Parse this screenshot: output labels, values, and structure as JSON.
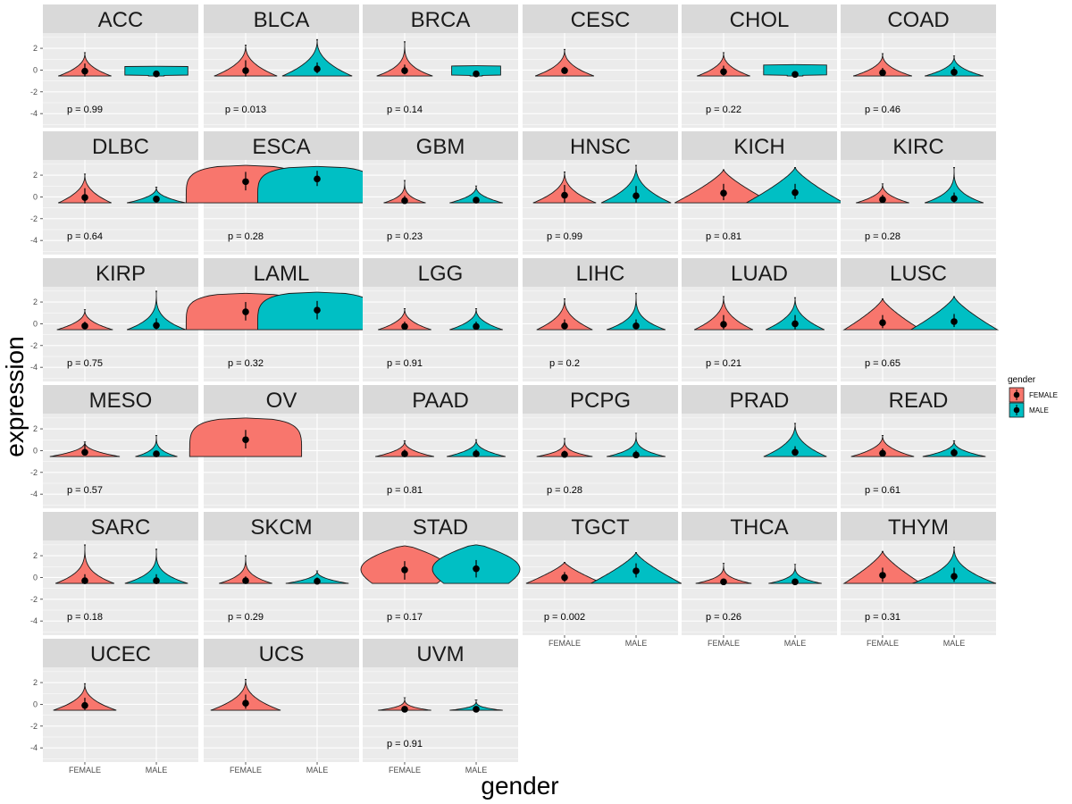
{
  "chart_data": {
    "type": "violin",
    "facet_layout": "6 columns, wrapped",
    "xlabel": "gender",
    "ylabel": "expression",
    "categories": [
      "FEMALE",
      "MALE"
    ],
    "ylim": [
      -5.3,
      3.4
    ],
    "yticks": [
      2,
      0,
      -2,
      -4
    ],
    "colors": {
      "FEMALE": "#F8766D",
      "MALE": "#00BFC4",
      "strip": "#D9D9D9",
      "panel": "#EBEBEB",
      "grid": "#FFFFFF",
      "outline": "#1A1A1A",
      "point": "#000000"
    },
    "legend": {
      "title": "gender",
      "position": "right",
      "entries": [
        "FEMALE",
        "MALE"
      ]
    },
    "facets": [
      {
        "name": "ACC",
        "pvalue": "p = 0.99",
        "violins": [
          {
            "group": "FEMALE",
            "min": -0.55,
            "max": 1.6,
            "width": 0.38,
            "shape": "spike",
            "mean": -0.1,
            "lo": -0.6,
            "hi": 0.6
          },
          {
            "group": "MALE",
            "min": -0.55,
            "max": 0.35,
            "width": 0.45,
            "shape": "funnel",
            "mean": -0.35,
            "lo": -0.5,
            "hi": -0.2
          }
        ]
      },
      {
        "name": "BLCA",
        "pvalue": "p = 0.013",
        "violins": [
          {
            "group": "FEMALE",
            "min": -0.55,
            "max": 2.3,
            "width": 0.45,
            "shape": "spike",
            "mean": -0.05,
            "lo": -0.6,
            "hi": 0.9
          },
          {
            "group": "MALE",
            "min": -0.55,
            "max": 2.8,
            "width": 0.5,
            "shape": "spike",
            "mean": 0.1,
            "lo": -0.3,
            "hi": 0.7
          }
        ]
      },
      {
        "name": "BRCA",
        "pvalue": "p = 0.14",
        "violins": [
          {
            "group": "FEMALE",
            "min": -0.55,
            "max": 2.6,
            "width": 0.4,
            "shape": "thin",
            "mean": -0.05,
            "lo": -0.4,
            "hi": 0.5
          },
          {
            "group": "MALE",
            "min": -0.55,
            "max": 0.4,
            "width": 0.35,
            "shape": "funnel",
            "mean": -0.35,
            "lo": -0.5,
            "hi": -0.2
          }
        ]
      },
      {
        "name": "CESC",
        "pvalue": "",
        "violins": [
          {
            "group": "FEMALE",
            "min": -0.55,
            "max": 1.9,
            "width": 0.42,
            "shape": "spike",
            "mean": -0.05,
            "lo": -0.3,
            "hi": 0.3
          }
        ]
      },
      {
        "name": "CHOL",
        "pvalue": "p = 0.22",
        "violins": [
          {
            "group": "FEMALE",
            "min": -0.55,
            "max": 1.6,
            "width": 0.38,
            "shape": "spike",
            "mean": -0.15,
            "lo": -0.5,
            "hi": 0.4
          },
          {
            "group": "MALE",
            "min": -0.55,
            "max": 0.5,
            "width": 0.45,
            "shape": "funnel",
            "mean": -0.4,
            "lo": -0.5,
            "hi": -0.3
          }
        ]
      },
      {
        "name": "COAD",
        "pvalue": "p = 0.46",
        "violins": [
          {
            "group": "FEMALE",
            "min": -0.55,
            "max": 1.5,
            "width": 0.42,
            "shape": "spike",
            "mean": -0.25,
            "lo": -0.5,
            "hi": 0.2
          },
          {
            "group": "MALE",
            "min": -0.55,
            "max": 1.3,
            "width": 0.42,
            "shape": "spike",
            "mean": -0.2,
            "lo": -0.4,
            "hi": 0.3
          }
        ]
      },
      {
        "name": "DLBC",
        "pvalue": "p = 0.64",
        "violins": [
          {
            "group": "FEMALE",
            "min": -0.55,
            "max": 2.1,
            "width": 0.38,
            "shape": "spike",
            "mean": -0.05,
            "lo": -0.6,
            "hi": 0.8
          },
          {
            "group": "MALE",
            "min": -0.55,
            "max": 0.9,
            "width": 0.42,
            "shape": "spike",
            "mean": -0.2,
            "lo": -0.4,
            "hi": 0.1
          }
        ]
      },
      {
        "name": "ESCA",
        "pvalue": "p = 0.28",
        "violins": [
          {
            "group": "FEMALE",
            "min": -0.55,
            "max": 2.9,
            "width": 0.85,
            "shape": "wide",
            "mean": 1.4,
            "lo": 0.6,
            "hi": 2.3
          },
          {
            "group": "MALE",
            "min": -0.55,
            "max": 2.8,
            "width": 0.85,
            "shape": "wide",
            "mean": 1.65,
            "lo": 1.0,
            "hi": 2.4
          }
        ]
      },
      {
        "name": "GBM",
        "pvalue": "p = 0.23",
        "violins": [
          {
            "group": "FEMALE",
            "min": -0.55,
            "max": 1.5,
            "width": 0.3,
            "shape": "thin",
            "mean": -0.35,
            "lo": -0.6,
            "hi": 0.1
          },
          {
            "group": "MALE",
            "min": -0.55,
            "max": 1.0,
            "width": 0.38,
            "shape": "spike",
            "mean": -0.3,
            "lo": -0.5,
            "hi": 0.0
          }
        ]
      },
      {
        "name": "HNSC",
        "pvalue": "p = 0.99",
        "violins": [
          {
            "group": "FEMALE",
            "min": -0.55,
            "max": 2.3,
            "width": 0.45,
            "shape": "spike",
            "mean": 0.15,
            "lo": -0.5,
            "hi": 1.1
          },
          {
            "group": "MALE",
            "min": -0.55,
            "max": 2.9,
            "width": 0.5,
            "shape": "spike",
            "mean": 0.1,
            "lo": -0.5,
            "hi": 1.0
          }
        ]
      },
      {
        "name": "KICH",
        "pvalue": "p = 0.81",
        "violins": [
          {
            "group": "FEMALE",
            "min": -0.55,
            "max": 2.5,
            "width": 0.7,
            "shape": "bell",
            "mean": 0.35,
            "lo": -0.3,
            "hi": 1.2
          },
          {
            "group": "MALE",
            "min": -0.55,
            "max": 2.7,
            "width": 0.7,
            "shape": "bell",
            "mean": 0.4,
            "lo": -0.2,
            "hi": 1.2
          }
        ]
      },
      {
        "name": "KIRC",
        "pvalue": "p = 0.28",
        "violins": [
          {
            "group": "FEMALE",
            "min": -0.55,
            "max": 1.2,
            "width": 0.38,
            "shape": "spike",
            "mean": -0.25,
            "lo": -0.5,
            "hi": 0.2
          },
          {
            "group": "MALE",
            "min": -0.55,
            "max": 2.7,
            "width": 0.42,
            "shape": "thin",
            "mean": -0.15,
            "lo": -0.5,
            "hi": 0.4
          }
        ]
      },
      {
        "name": "KIRP",
        "pvalue": "p = 0.75",
        "violins": [
          {
            "group": "FEMALE",
            "min": -0.55,
            "max": 1.3,
            "width": 0.4,
            "shape": "spike",
            "mean": -0.2,
            "lo": -0.5,
            "hi": 0.2
          },
          {
            "group": "MALE",
            "min": -0.55,
            "max": 3.0,
            "width": 0.42,
            "shape": "thin",
            "mean": -0.15,
            "lo": -0.5,
            "hi": 0.5
          }
        ]
      },
      {
        "name": "LAML",
        "pvalue": "p = 0.32",
        "violins": [
          {
            "group": "FEMALE",
            "min": -0.55,
            "max": 2.8,
            "width": 0.85,
            "shape": "wide",
            "mean": 1.1,
            "lo": 0.3,
            "hi": 2.0
          },
          {
            "group": "MALE",
            "min": -0.55,
            "max": 2.9,
            "width": 0.85,
            "shape": "wide",
            "mean": 1.25,
            "lo": 0.4,
            "hi": 2.1
          }
        ]
      },
      {
        "name": "LGG",
        "pvalue": "p = 0.91",
        "violins": [
          {
            "group": "FEMALE",
            "min": -0.55,
            "max": 1.4,
            "width": 0.38,
            "shape": "spike",
            "mean": -0.25,
            "lo": -0.5,
            "hi": 0.2
          },
          {
            "group": "MALE",
            "min": -0.55,
            "max": 1.4,
            "width": 0.38,
            "shape": "spike",
            "mean": -0.25,
            "lo": -0.5,
            "hi": 0.2
          }
        ]
      },
      {
        "name": "LIHC",
        "pvalue": "p = 0.2",
        "violins": [
          {
            "group": "FEMALE",
            "min": -0.55,
            "max": 2.3,
            "width": 0.4,
            "shape": "spike",
            "mean": -0.2,
            "lo": -0.5,
            "hi": 0.4
          },
          {
            "group": "MALE",
            "min": -0.55,
            "max": 2.8,
            "width": 0.42,
            "shape": "thin",
            "mean": -0.2,
            "lo": -0.5,
            "hi": 0.4
          }
        ]
      },
      {
        "name": "LUAD",
        "pvalue": "p = 0.21",
        "violins": [
          {
            "group": "FEMALE",
            "min": -0.55,
            "max": 2.5,
            "width": 0.42,
            "shape": "spike",
            "mean": -0.05,
            "lo": -0.5,
            "hi": 0.8
          },
          {
            "group": "MALE",
            "min": -0.55,
            "max": 2.4,
            "width": 0.42,
            "shape": "spike",
            "mean": 0.0,
            "lo": -0.5,
            "hi": 0.8
          }
        ]
      },
      {
        "name": "LUSC",
        "pvalue": "p = 0.65",
        "violins": [
          {
            "group": "FEMALE",
            "min": -0.55,
            "max": 2.3,
            "width": 0.55,
            "shape": "bell",
            "mean": 0.1,
            "lo": -0.4,
            "hi": 0.8
          },
          {
            "group": "MALE",
            "min": -0.55,
            "max": 2.5,
            "width": 0.62,
            "shape": "bell",
            "mean": 0.2,
            "lo": -0.3,
            "hi": 0.9
          }
        ]
      },
      {
        "name": "MESO",
        "pvalue": "p = 0.57",
        "violins": [
          {
            "group": "FEMALE",
            "min": -0.55,
            "max": 0.8,
            "width": 0.5,
            "shape": "spike",
            "mean": -0.15,
            "lo": -0.4,
            "hi": 0.6
          },
          {
            "group": "MALE",
            "min": -0.55,
            "max": 1.4,
            "width": 0.3,
            "shape": "thin",
            "mean": -0.3,
            "lo": -0.5,
            "hi": 0.0
          }
        ]
      },
      {
        "name": "OV",
        "pvalue": "",
        "violins": [
          {
            "group": "FEMALE",
            "min": -0.55,
            "max": 3.0,
            "width": 0.8,
            "shape": "wide",
            "mean": 1.0,
            "lo": 0.2,
            "hi": 1.9
          }
        ]
      },
      {
        "name": "PAAD",
        "pvalue": "p = 0.81",
        "violins": [
          {
            "group": "FEMALE",
            "min": -0.55,
            "max": 0.9,
            "width": 0.42,
            "shape": "spike",
            "mean": -0.3,
            "lo": -0.5,
            "hi": 0.1
          },
          {
            "group": "MALE",
            "min": -0.55,
            "max": 1.0,
            "width": 0.42,
            "shape": "spike",
            "mean": -0.3,
            "lo": -0.5,
            "hi": 0.1
          }
        ]
      },
      {
        "name": "PCPG",
        "pvalue": "p = 0.28",
        "violins": [
          {
            "group": "FEMALE",
            "min": -0.55,
            "max": 1.1,
            "width": 0.4,
            "shape": "thin",
            "mean": -0.35,
            "lo": -0.5,
            "hi": 0.0
          },
          {
            "group": "MALE",
            "min": -0.55,
            "max": 1.6,
            "width": 0.42,
            "shape": "thin",
            "mean": -0.4,
            "lo": -0.55,
            "hi": 0.0
          }
        ]
      },
      {
        "name": "PRAD",
        "pvalue": "",
        "violins": [
          {
            "group": "MALE",
            "min": -0.55,
            "max": 2.5,
            "width": 0.45,
            "shape": "spike",
            "mean": -0.15,
            "lo": -0.4,
            "hi": 0.4
          }
        ]
      },
      {
        "name": "READ",
        "pvalue": "p = 0.61",
        "violins": [
          {
            "group": "FEMALE",
            "min": -0.55,
            "max": 1.4,
            "width": 0.45,
            "shape": "spike",
            "mean": -0.25,
            "lo": -0.5,
            "hi": 0.2
          },
          {
            "group": "MALE",
            "min": -0.55,
            "max": 0.9,
            "width": 0.45,
            "shape": "spike",
            "mean": -0.2,
            "lo": -0.4,
            "hi": 0.2
          }
        ]
      },
      {
        "name": "SARC",
        "pvalue": "p = 0.18",
        "violins": [
          {
            "group": "FEMALE",
            "min": -0.55,
            "max": 3.0,
            "width": 0.42,
            "shape": "thin",
            "mean": -0.3,
            "lo": -0.6,
            "hi": 0.3
          },
          {
            "group": "MALE",
            "min": -0.55,
            "max": 2.6,
            "width": 0.45,
            "shape": "thin",
            "mean": -0.3,
            "lo": -0.6,
            "hi": 0.3
          }
        ]
      },
      {
        "name": "SKCM",
        "pvalue": "p = 0.29",
        "violins": [
          {
            "group": "FEMALE",
            "min": -0.55,
            "max": 2.0,
            "width": 0.38,
            "shape": "thin",
            "mean": -0.3,
            "lo": -0.5,
            "hi": 0.1
          },
          {
            "group": "MALE",
            "min": -0.55,
            "max": 0.6,
            "width": 0.45,
            "shape": "spike",
            "mean": -0.35,
            "lo": -0.5,
            "hi": 0.0
          }
        ]
      },
      {
        "name": "STAD",
        "pvalue": "p = 0.17",
        "violins": [
          {
            "group": "FEMALE",
            "min": -0.55,
            "max": 2.9,
            "width": 0.8,
            "shape": "pear",
            "mean": 0.7,
            "lo": -0.2,
            "hi": 1.5
          },
          {
            "group": "MALE",
            "min": -0.55,
            "max": 3.0,
            "width": 0.8,
            "shape": "pear",
            "mean": 0.8,
            "lo": 0.0,
            "hi": 1.6
          }
        ]
      },
      {
        "name": "TGCT",
        "pvalue": "p = 0.002",
        "violins": [
          {
            "group": "FEMALE",
            "min": -0.55,
            "max": 1.4,
            "width": 0.55,
            "shape": "bell",
            "mean": 0.0,
            "lo": -0.4,
            "hi": 0.5
          },
          {
            "group": "MALE",
            "min": -0.55,
            "max": 2.3,
            "width": 0.65,
            "shape": "bell",
            "mean": 0.6,
            "lo": 0.0,
            "hi": 1.3
          }
        ]
      },
      {
        "name": "THCA",
        "pvalue": "p = 0.26",
        "violins": [
          {
            "group": "FEMALE",
            "min": -0.55,
            "max": 1.3,
            "width": 0.4,
            "shape": "thin",
            "mean": -0.4,
            "lo": -0.55,
            "hi": -0.1
          },
          {
            "group": "MALE",
            "min": -0.55,
            "max": 1.2,
            "width": 0.38,
            "shape": "thin",
            "mean": -0.4,
            "lo": -0.55,
            "hi": -0.1
          }
        ]
      },
      {
        "name": "THYM",
        "pvalue": "p = 0.31",
        "violins": [
          {
            "group": "FEMALE",
            "min": -0.55,
            "max": 2.4,
            "width": 0.55,
            "shape": "bell",
            "mean": 0.2,
            "lo": -0.4,
            "hi": 0.9
          },
          {
            "group": "MALE",
            "min": -0.55,
            "max": 2.8,
            "width": 0.6,
            "shape": "spike",
            "mean": 0.1,
            "lo": -0.4,
            "hi": 0.9
          }
        ]
      },
      {
        "name": "UCEC",
        "pvalue": "",
        "violins": [
          {
            "group": "FEMALE",
            "min": -0.55,
            "max": 1.9,
            "width": 0.45,
            "shape": "spike",
            "mean": -0.1,
            "lo": -0.5,
            "hi": 0.6
          }
        ]
      },
      {
        "name": "UCS",
        "pvalue": "",
        "violins": [
          {
            "group": "FEMALE",
            "min": -0.55,
            "max": 2.3,
            "width": 0.5,
            "shape": "spike",
            "mean": 0.1,
            "lo": -0.4,
            "hi": 0.9
          }
        ]
      },
      {
        "name": "UVM",
        "pvalue": "p = 0.91",
        "violins": [
          {
            "group": "FEMALE",
            "min": -0.55,
            "max": 0.6,
            "width": 0.38,
            "shape": "thin",
            "mean": -0.45,
            "lo": -0.55,
            "hi": -0.2
          },
          {
            "group": "MALE",
            "min": -0.55,
            "max": 0.4,
            "width": 0.38,
            "shape": "thin",
            "mean": -0.45,
            "lo": -0.55,
            "hi": -0.2
          }
        ]
      }
    ]
  }
}
